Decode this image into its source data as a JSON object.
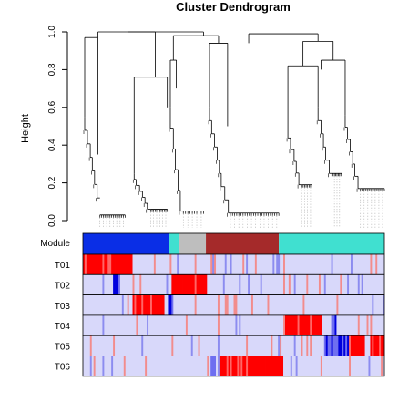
{
  "chart_data": {
    "type": "heatmap",
    "title": "Cluster Dendrogram",
    "ylabel": "Height",
    "ylim": [
      0,
      1
    ],
    "yticks": [
      "0.0",
      "0.2",
      "0.4",
      "0.6",
      "0.8",
      "1.0"
    ],
    "ytick_values": [
      0,
      0.2,
      0.4,
      0.6,
      0.8,
      1.0
    ],
    "module_label": "Module",
    "module_colors": [
      "#0a2ee6",
      "#40e0d0",
      "#bebebe",
      "#a52a2a",
      "#40e0d0"
    ],
    "module_spans": [
      [
        0,
        0.285
      ],
      [
        0.285,
        0.318
      ],
      [
        0.318,
        0.408
      ],
      [
        0.408,
        0.65
      ],
      [
        0.65,
        1.0
      ]
    ],
    "trait_labels": [
      "T01",
      "T02",
      "T03",
      "T04",
      "T05",
      "T06"
    ],
    "colors": {
      "low": "#0000dd",
      "mid": "#d8d8fa",
      "high": "#ff0000",
      "dendro": "#000000"
    }
  }
}
